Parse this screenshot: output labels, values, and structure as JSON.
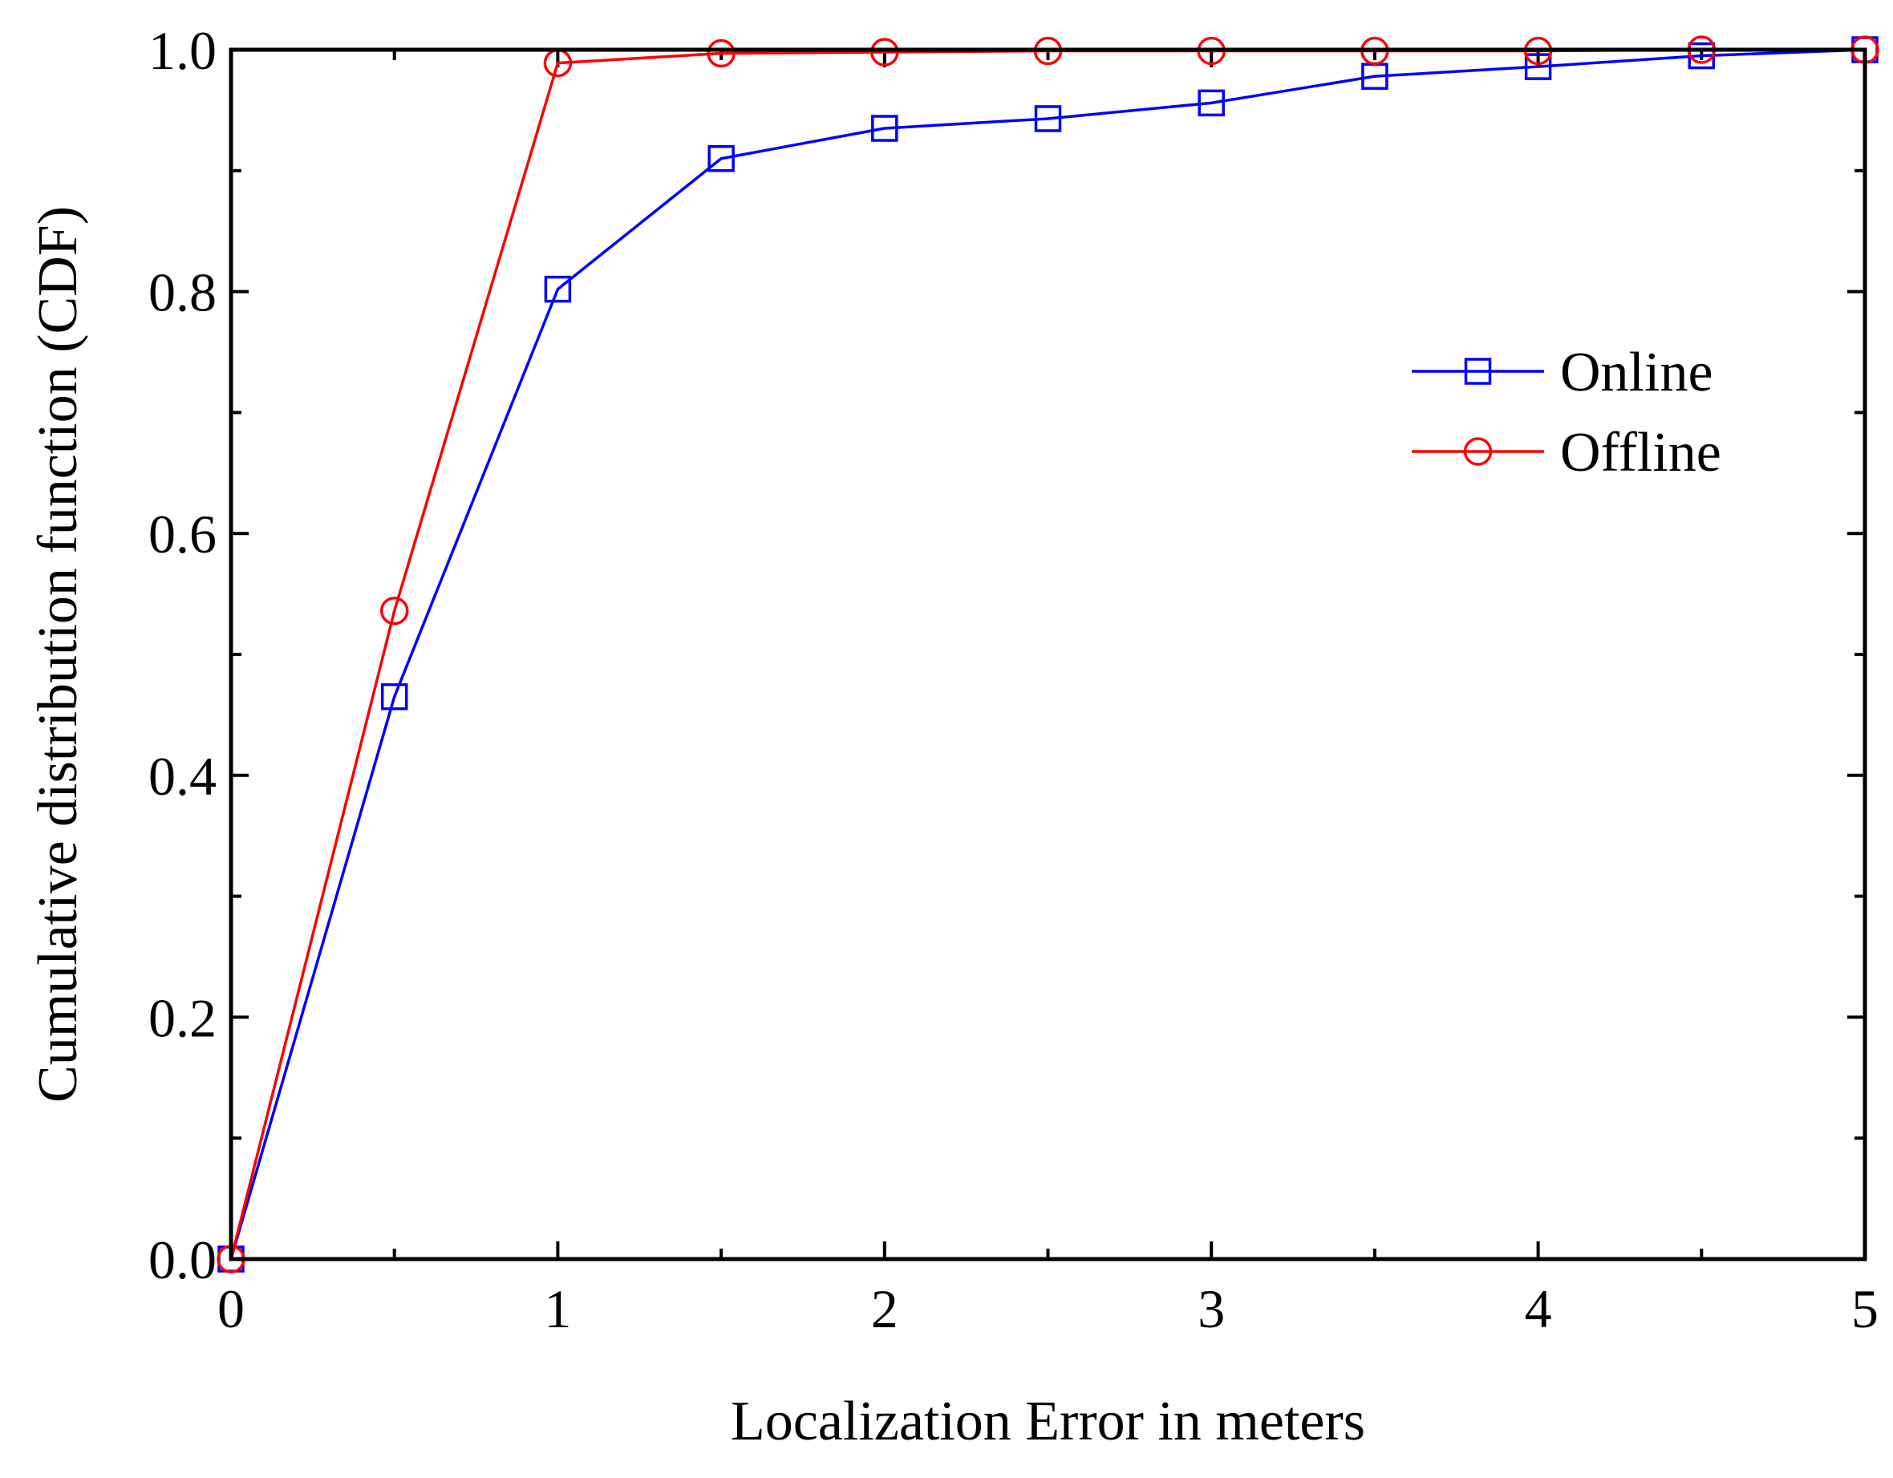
{
  "chart_data": {
    "type": "line",
    "title": "",
    "xlabel": "Localization Error in meters",
    "ylabel": "Cumulative distribution function (CDF)",
    "xlim": [
      0,
      5
    ],
    "ylim": [
      0,
      1.0
    ],
    "xticks": [
      0,
      1,
      2,
      3,
      4,
      5
    ],
    "xtick_labels": [
      "0",
      "1",
      "2",
      "3",
      "4",
      "5"
    ],
    "yticks": [
      0,
      0.2,
      0.4,
      0.6,
      0.8,
      1.0
    ],
    "ytick_labels": [
      "0.0",
      "0.2",
      "0.4",
      "0.6",
      "0.8",
      "1.0"
    ],
    "grid": false,
    "legend_position": "right",
    "x": [
      0,
      0.5,
      1,
      1.5,
      2,
      2.5,
      3,
      3.5,
      4,
      4.5,
      5
    ],
    "series": [
      {
        "name": "Online",
        "color": "#0000ff",
        "marker": "square",
        "values": [
          0.0,
          0.465,
          0.802,
          0.91,
          0.935,
          0.943,
          0.956,
          0.978,
          0.986,
          0.995,
          1.0
        ]
      },
      {
        "name": "Offline",
        "color": "#ff0000",
        "marker": "circle",
        "values": [
          0.0,
          0.536,
          0.989,
          0.997,
          0.998,
          0.999,
          0.999,
          0.999,
          0.999,
          1.0,
          1.0
        ]
      }
    ]
  }
}
